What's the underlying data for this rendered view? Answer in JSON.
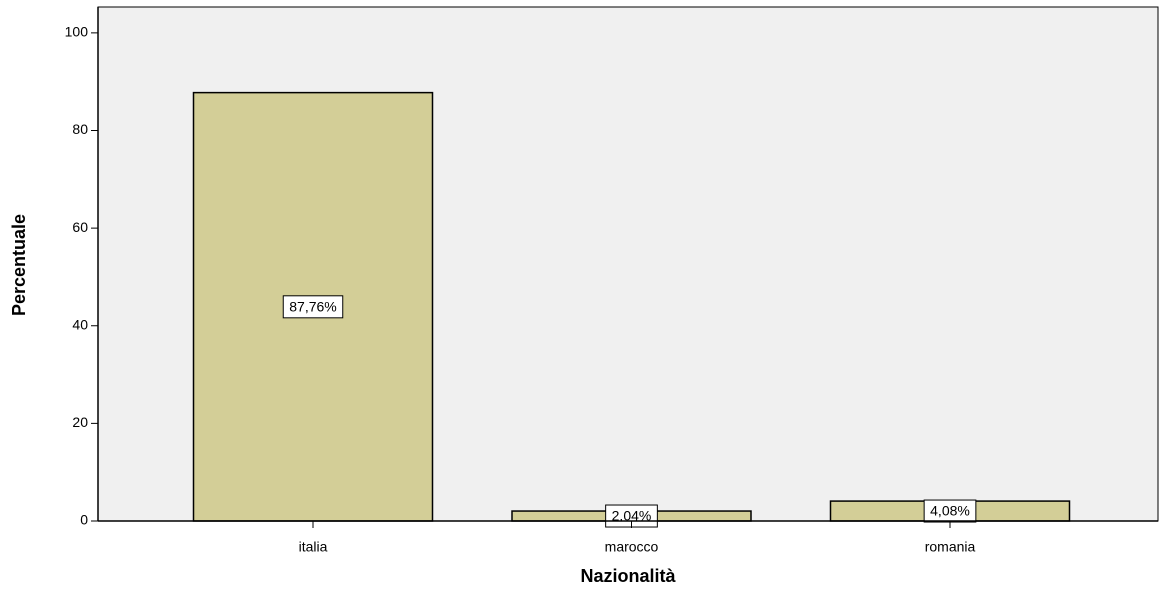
{
  "chart_data": {
    "type": "bar",
    "xlabel": "Nazionalità",
    "ylabel": "Percentuale",
    "categories": [
      "italia",
      "marocco",
      "romania"
    ],
    "values": [
      87.76,
      2.04,
      4.08
    ],
    "value_labels": [
      "87,76%",
      "2.04%",
      "4,08%"
    ],
    "color": "#d3ce97",
    "ylim": [
      0,
      105.3
    ],
    "yticks": [
      0,
      20,
      40,
      60,
      80,
      100
    ],
    "grid": false
  }
}
